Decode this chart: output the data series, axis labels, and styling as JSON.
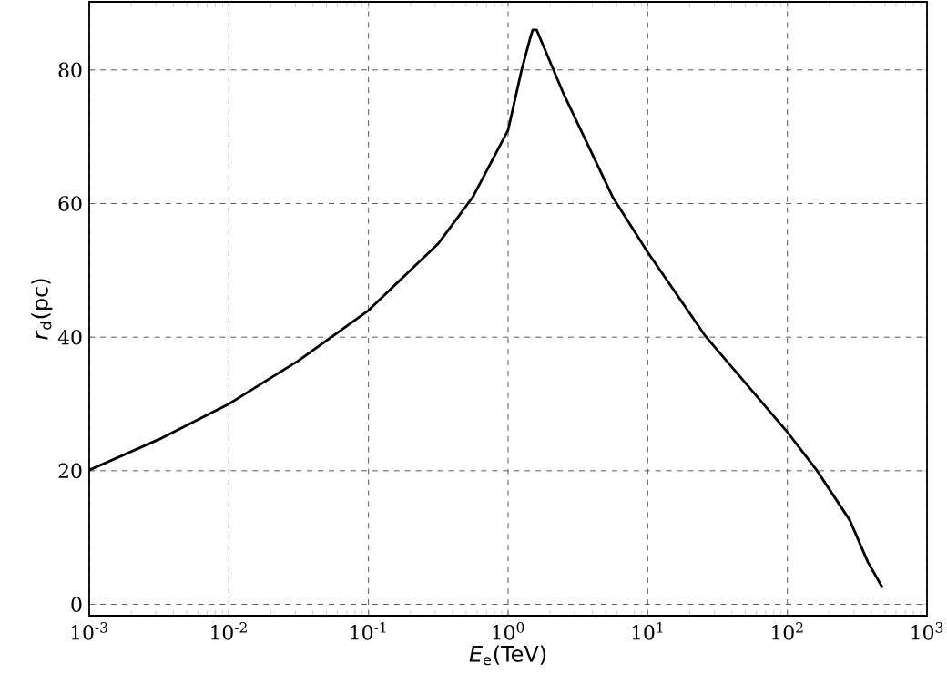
{
  "chart_data": {
    "type": "line",
    "xlabel": "*E*$_{e}$(TeV)",
    "ylabel": "*r*$_{d}$(pc)",
    "log": "x",
    "grid": true,
    "line_style": "solid",
    "marker": "none",
    "x": [
      0.001,
      0.00316,
      0.01,
      0.0316,
      0.1,
      0.316,
      0.56,
      1,
      1.25,
      1.45,
      1.5,
      1.6,
      2.5,
      5.6,
      10,
      26,
      100,
      162,
      280,
      378,
      480
    ],
    "series": [
      {
        "color": "#000000",
        "values": [
          20.1,
          24.7,
          30,
          36.5,
          44,
          54,
          61,
          71,
          80,
          85,
          86,
          86,
          76.4,
          61,
          52.7,
          40.1,
          25.8,
          20.1,
          12.6,
          6.3,
          2.5
        ]
      }
    ],
    "xlim": [
      0.001,
      1000
    ],
    "ylim": [
      -1.7,
      90.2
    ],
    "xticks": [
      {
        "value": 0.001,
        "label": "10$^{-3}$"
      },
      {
        "value": 0.01,
        "label": "10$^{-2}$"
      },
      {
        "value": 0.1,
        "label": "10$^{-1}$"
      },
      {
        "value": 1,
        "label": "10$^{0}$"
      },
      {
        "value": 10,
        "label": "10$^{1}$"
      },
      {
        "value": 100,
        "label": "10$^{2}$"
      },
      {
        "value": 1000,
        "label": "10$^{3}$"
      }
    ],
    "yticks": [
      0,
      20,
      40,
      60,
      80
    ]
  }
}
